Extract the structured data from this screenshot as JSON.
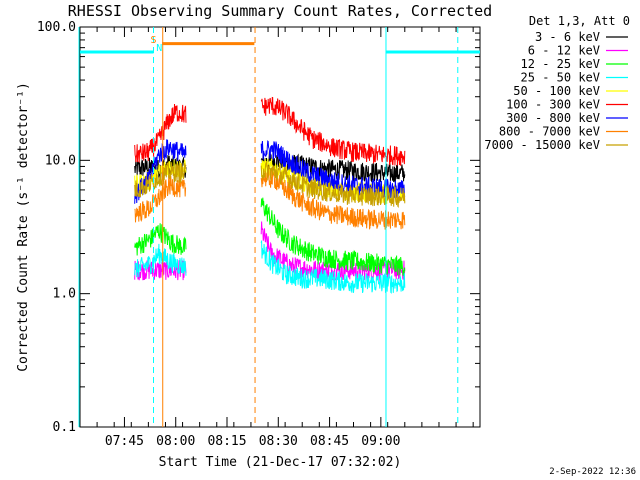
{
  "chart_data": {
    "type": "line",
    "title": "RHESSI Observing Summary Count Rates, Corrected",
    "xlabel": "Start Time (21-Dec-17 07:32:02)",
    "ylabel": "Corrected Count Rate (s⁻¹ detector⁻¹)",
    "yscale": "log",
    "ylim": [
      0.1,
      100
    ],
    "xlim_minutes": [
      0,
      117
    ],
    "y_ticks": [
      {
        "value": 100,
        "label": "100.0"
      },
      {
        "value": 10,
        "label": "10.0"
      },
      {
        "value": 1,
        "label": "1.0"
      },
      {
        "value": 0.1,
        "label": "0.1"
      }
    ],
    "x_ticks": [
      {
        "minute": 13,
        "label": "07:45"
      },
      {
        "minute": 28,
        "label": "08:00"
      },
      {
        "minute": 43,
        "label": "08:15"
      },
      {
        "minute": 58,
        "label": "08:30"
      },
      {
        "minute": 73,
        "label": "08:45"
      },
      {
        "minute": 88,
        "label": "09:00"
      }
    ],
    "legend_title": "Det 1,3, Att 0",
    "segments": [
      [
        16,
        31
      ],
      [
        53,
        95
      ]
    ],
    "series": [
      {
        "name": "3 - 6 keV",
        "color": "#000000",
        "seg1": [
          [
            16,
            8.6
          ],
          [
            20,
            8.9
          ],
          [
            23,
            8.6
          ],
          [
            26,
            9.4
          ],
          [
            28,
            9.0
          ],
          [
            31,
            8.8
          ]
        ],
        "seg2": [
          [
            53,
            9.6
          ],
          [
            57,
            10.0
          ],
          [
            62,
            9.4
          ],
          [
            67,
            9.0
          ],
          [
            72,
            8.6
          ],
          [
            78,
            8.4
          ],
          [
            85,
            8.2
          ],
          [
            90,
            8.0
          ],
          [
            95,
            8.0
          ]
        ]
      },
      {
        "name": "6 - 12 keV",
        "color": "#ff00ff",
        "seg1": [
          [
            16,
            1.5
          ],
          [
            23,
            1.5
          ],
          [
            31,
            1.5
          ]
        ],
        "seg2": [
          [
            53,
            3.0
          ],
          [
            56,
            2.0
          ],
          [
            62,
            1.6
          ],
          [
            70,
            1.5
          ],
          [
            80,
            1.5
          ],
          [
            95,
            1.5
          ]
        ]
      },
      {
        "name": "12 - 25 keV",
        "color": "#00ff00",
        "seg1": [
          [
            16,
            2.2
          ],
          [
            21,
            2.6
          ],
          [
            23,
            3.0
          ],
          [
            27,
            2.4
          ],
          [
            31,
            2.2
          ]
        ],
        "seg2": [
          [
            53,
            4.8
          ],
          [
            55,
            4.0
          ],
          [
            58,
            3.0
          ],
          [
            62,
            2.4
          ],
          [
            68,
            2.0
          ],
          [
            75,
            1.8
          ],
          [
            85,
            1.7
          ],
          [
            95,
            1.6
          ]
        ]
      },
      {
        "name": "25 - 50 keV",
        "color": "#00ffff",
        "seg1": [
          [
            16,
            1.5
          ],
          [
            21,
            1.7
          ],
          [
            23,
            2.0
          ],
          [
            27,
            1.7
          ],
          [
            31,
            1.6
          ]
        ],
        "seg2": [
          [
            53,
            2.2
          ],
          [
            56,
            1.7
          ],
          [
            60,
            1.4
          ],
          [
            65,
            1.3
          ],
          [
            70,
            1.3
          ],
          [
            80,
            1.2
          ],
          [
            95,
            1.2
          ]
        ]
      },
      {
        "name": "50 - 100 keV",
        "color": "#ffff00",
        "seg1": [
          [
            16,
            6.5
          ],
          [
            20,
            7.0
          ],
          [
            23,
            8.0
          ],
          [
            26,
            9.0
          ],
          [
            31,
            8.5
          ]
        ],
        "seg2": [
          [
            53,
            8.8
          ],
          [
            57,
            8.6
          ],
          [
            62,
            7.6
          ],
          [
            68,
            6.5
          ],
          [
            75,
            6.0
          ],
          [
            85,
            5.7
          ],
          [
            95,
            5.5
          ]
        ]
      },
      {
        "name": "100 - 300 keV",
        "color": "#ff0000",
        "seg1": [
          [
            16,
            11.0
          ],
          [
            20,
            11.5
          ],
          [
            23,
            14.0
          ],
          [
            26,
            20.0
          ],
          [
            28,
            23.0
          ],
          [
            31,
            22.0
          ]
        ],
        "seg2": [
          [
            53,
            25.0
          ],
          [
            56,
            26.0
          ],
          [
            60,
            23.0
          ],
          [
            64,
            18.0
          ],
          [
            68,
            14.5
          ],
          [
            74,
            12.5
          ],
          [
            80,
            11.5
          ],
          [
            88,
            11.0
          ],
          [
            95,
            10.8
          ]
        ]
      },
      {
        "name": "300 - 800 keV",
        "color": "#0000ff",
        "seg1": [
          [
            16,
            5.5
          ],
          [
            20,
            7.0
          ],
          [
            23,
            11.0
          ],
          [
            26,
            12.5
          ],
          [
            31,
            11.0
          ]
        ],
        "seg2": [
          [
            53,
            12.0
          ],
          [
            57,
            12.0
          ],
          [
            62,
            9.5
          ],
          [
            67,
            8.0
          ],
          [
            72,
            7.2
          ],
          [
            78,
            6.6
          ],
          [
            85,
            6.3
          ],
          [
            95,
            6.0
          ]
        ]
      },
      {
        "name": "800 - 7000 keV",
        "color": "#ff8000",
        "seg1": [
          [
            16,
            4.0
          ],
          [
            20,
            4.3
          ],
          [
            23,
            5.2
          ],
          [
            26,
            6.5
          ],
          [
            31,
            6.0
          ]
        ],
        "seg2": [
          [
            53,
            7.5
          ],
          [
            57,
            7.2
          ],
          [
            62,
            5.5
          ],
          [
            67,
            4.5
          ],
          [
            72,
            4.0
          ],
          [
            78,
            3.8
          ],
          [
            85,
            3.6
          ],
          [
            95,
            3.6
          ]
        ]
      },
      {
        "name": "7000 - 15000 keV",
        "color": "#c8a000",
        "seg1": [
          [
            16,
            6.0
          ],
          [
            20,
            6.5
          ],
          [
            23,
            7.5
          ],
          [
            26,
            8.2
          ],
          [
            31,
            8.0
          ]
        ],
        "seg2": [
          [
            53,
            8.5
          ],
          [
            57,
            8.2
          ],
          [
            62,
            7.2
          ],
          [
            67,
            6.2
          ],
          [
            72,
            5.8
          ],
          [
            78,
            5.5
          ],
          [
            85,
            5.4
          ],
          [
            95,
            5.3
          ]
        ]
      }
    ],
    "night_intervals": [
      [
        -4,
        21.5
      ],
      [
        89.5,
        117
      ]
    ],
    "saa_interval": [
      24,
      51
    ],
    "vlines": [
      {
        "minute": -0.3,
        "color": "#00ffff",
        "style": "solid"
      },
      {
        "minute": 21.5,
        "color": "#00ffff",
        "style": "dashed"
      },
      {
        "minute": 24.2,
        "color": "#ff8000",
        "style": "solid"
      },
      {
        "minute": 51.2,
        "color": "#ff8000",
        "style": "dashed"
      },
      {
        "minute": 89.5,
        "color": "#00ffff",
        "style": "solid"
      },
      {
        "minute": 110.5,
        "color": "#00ffff",
        "style": "dashed"
      }
    ],
    "markers": [
      {
        "label": "S",
        "minute": 21.5,
        "color": "#ff8000"
      },
      {
        "label": "N",
        "minute": 23.2,
        "color": "#00ffff"
      }
    ]
  },
  "footer": {
    "timestamp": "2-Sep-2022 12:36"
  }
}
